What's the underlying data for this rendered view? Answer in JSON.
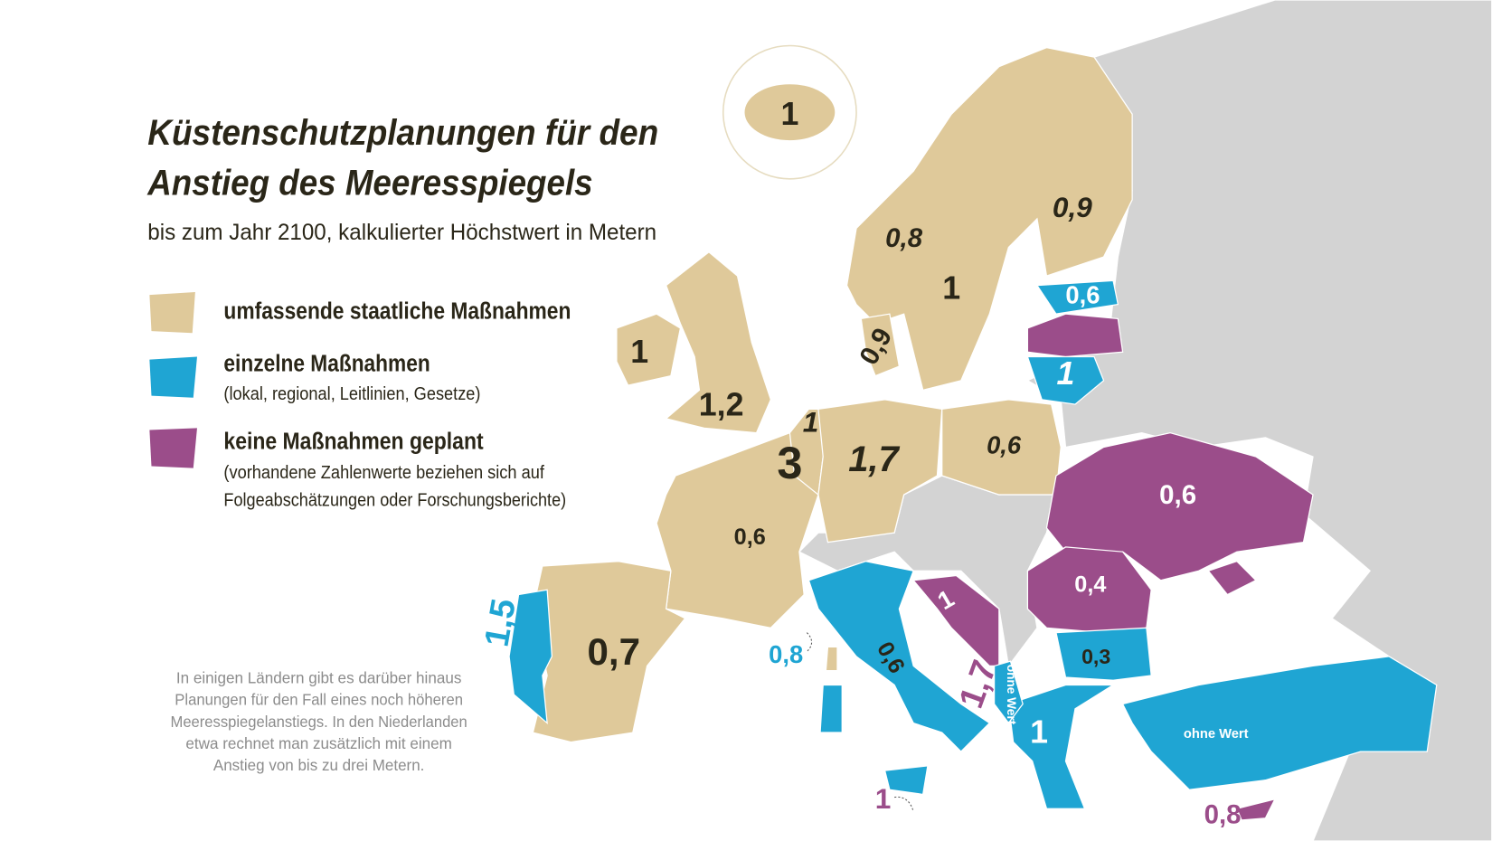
{
  "title": [
    "Küstenschutzplanungen für den",
    "Anstieg des Meeresspiegels"
  ],
  "subtitle": "bis zum Jahr 2100, kalkulierter Höchstwert in Metern",
  "legend": [
    {
      "label": "umfassende staatliche Maßnahmen",
      "color": "#dfc99a"
    },
    {
      "label": "einzelne Maßnahmen",
      "note": [
        "(lokal, regional, Leitlinien, Gesetze)"
      ],
      "color": "#1fa5d3"
    },
    {
      "label": "keine Maßnahmen geplant",
      "note": [
        "(vorhandene Zahlenwerte beziehen sich auf",
        "Folgeabschätzungen oder Forschungsberichte)"
      ],
      "color": "#9b4d8a"
    }
  ],
  "note": [
    "In einigen Ländern gibt es darüber hinaus",
    "Planungen für den Fall eines noch höheren",
    "Meeresspiegelanstiegs. In den Niederlanden",
    "etwa rechnet man zusätzlich mit einem",
    "Anstieg von bis zu drei Metern."
  ],
  "labels": [
    "1",
    "0,9",
    "0,8",
    "1",
    "0,6",
    "1",
    "1",
    "1,2",
    "0,9",
    "1",
    "3",
    "1,7",
    "0,6",
    "0,6",
    "0,6",
    "0,4",
    "1,5",
    "0,7",
    "0,8",
    "0,6",
    "1",
    "1,7",
    "ohne Wert",
    "0,3",
    "1",
    "ohne Wert",
    "1",
    "0,8"
  ]
}
